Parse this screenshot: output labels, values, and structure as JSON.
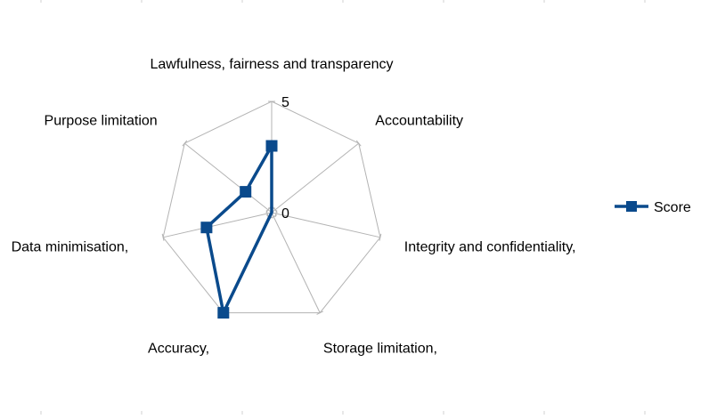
{
  "chart_data": {
    "type": "radar",
    "axes": [
      "Lawfulness, fairness and transparency",
      "Accountability",
      "Integrity and confidentiality,",
      "Storage limitation,",
      "Accuracy,",
      "Data minimisation,",
      "Purpose limitation"
    ],
    "series": [
      {
        "name": "Score",
        "values": [
          3,
          0,
          0,
          0,
          5,
          3,
          1.5
        ]
      }
    ],
    "range": [
      0,
      5
    ],
    "tick_labels": [
      "0",
      "5"
    ],
    "legend_position": "right",
    "colors": {
      "series": "#0a4a8c",
      "grid": "#b3b3b3",
      "frame_ticks": "#d0d0d0"
    }
  }
}
